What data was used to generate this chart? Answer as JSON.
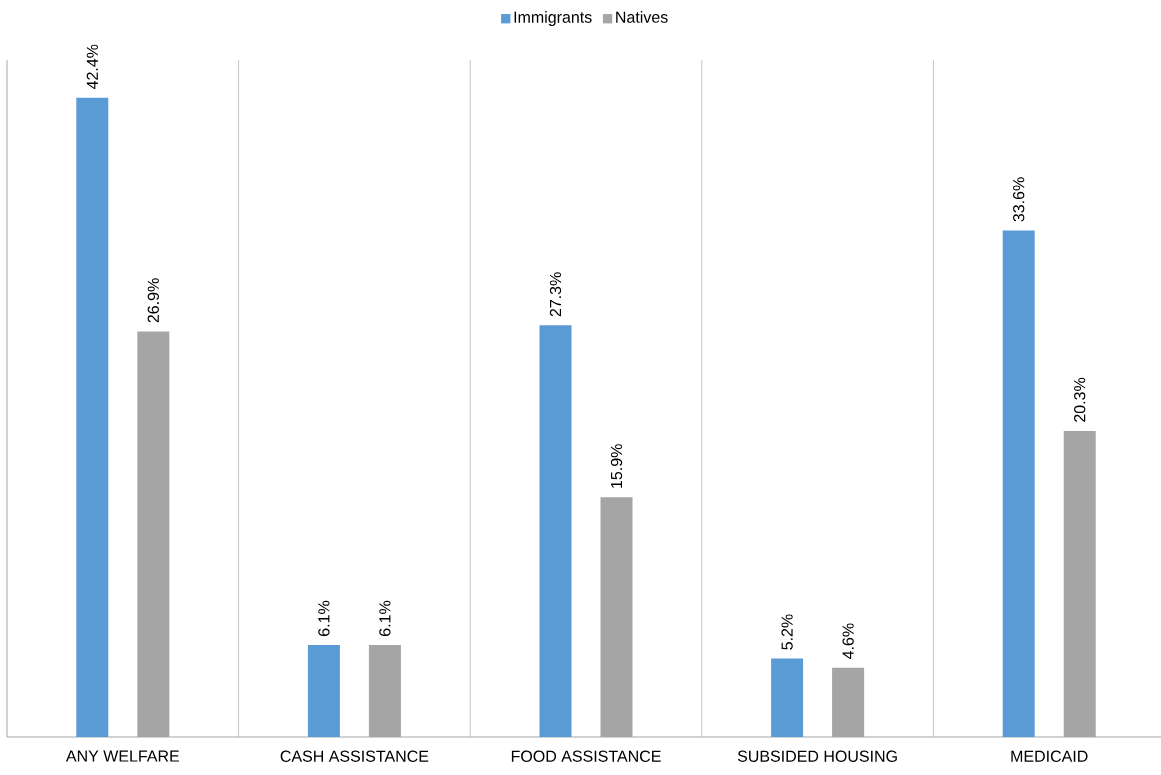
{
  "chart_data": {
    "type": "bar",
    "categories": [
      "ANY WELFARE",
      "CASH ASSISTANCE",
      "FOOD ASSISTANCE",
      "SUBSIDED HOUSING",
      "MEDICAID"
    ],
    "series": [
      {
        "name": "Immigrants",
        "color": "#5b9bd5",
        "values": [
          42.4,
          6.1,
          27.3,
          5.2,
          33.6
        ],
        "value_labels": [
          "42.4%",
          "6.1%",
          "27.3%",
          "5.2%",
          "33.6%"
        ]
      },
      {
        "name": "Natives",
        "color": "#a5a5a5",
        "values": [
          26.9,
          6.1,
          15.9,
          4.6,
          20.3
        ],
        "value_labels": [
          "26.9%",
          "6.1%",
          "15.9%",
          "4.6%",
          "20.3%"
        ]
      }
    ],
    "grid": "x",
    "legend": "top"
  }
}
